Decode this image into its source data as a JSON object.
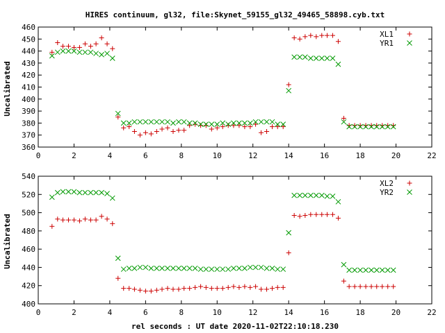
{
  "title": "HIRES continuum, gl32, file:Skynet_59155_gl32_49465_58898.cyb.txt",
  "xlabel": "rel seconds : UT date 2020-11-02T22:10:18.230",
  "colors": {
    "plus_series": "#cc0000",
    "x_series": "#009900"
  },
  "chart_data": [
    {
      "type": "scatter",
      "ylabel": "Uncalibrated",
      "xlim": [
        0,
        22
      ],
      "ylim": [
        360,
        460
      ],
      "xticks": [
        0,
        2,
        4,
        6,
        8,
        10,
        12,
        14,
        16,
        18,
        20,
        22
      ],
      "yticks": [
        360,
        370,
        380,
        390,
        400,
        410,
        420,
        430,
        440,
        450,
        460
      ],
      "grid": false,
      "legend": "top-right",
      "series": [
        {
          "name": "XL1",
          "marker": "plus",
          "x": [
            0.77,
            1.08,
            1.38,
            1.69,
            2.0,
            2.31,
            2.62,
            2.93,
            3.23,
            3.54,
            3.85,
            4.15,
            4.46,
            4.77,
            5.08,
            5.38,
            5.69,
            6.0,
            6.31,
            6.62,
            6.92,
            7.23,
            7.54,
            7.85,
            8.15,
            8.46,
            8.77,
            9.08,
            9.38,
            9.69,
            10.0,
            10.31,
            10.62,
            10.92,
            11.23,
            11.54,
            11.85,
            12.15,
            12.46,
            12.77,
            13.08,
            13.38,
            13.69,
            14.0,
            14.31,
            14.62,
            14.92,
            15.23,
            15.54,
            15.85,
            16.15,
            16.46,
            16.77,
            17.08,
            17.38,
            17.69,
            18.0,
            18.31,
            18.62,
            18.92,
            19.23,
            19.54,
            19.85
          ],
          "y": [
            439,
            447,
            444,
            444,
            443,
            443,
            446,
            444,
            446,
            451,
            446,
            442,
            385,
            376,
            377,
            373,
            370,
            372,
            371,
            373,
            375,
            376,
            373,
            374,
            374,
            378,
            379,
            378,
            378,
            375,
            376,
            377,
            378,
            378,
            378,
            377,
            377,
            379,
            372,
            373,
            377,
            377,
            377,
            412,
            451,
            450,
            452,
            453,
            452,
            453,
            453,
            453,
            448,
            384,
            378,
            378,
            378,
            378,
            378,
            378,
            378,
            378,
            378
          ]
        },
        {
          "name": "YR1",
          "marker": "x",
          "x": [
            0.77,
            1.08,
            1.38,
            1.69,
            2.0,
            2.31,
            2.62,
            2.93,
            3.23,
            3.54,
            3.85,
            4.15,
            4.46,
            4.77,
            5.08,
            5.38,
            5.69,
            6.0,
            6.31,
            6.62,
            6.92,
            7.23,
            7.54,
            7.85,
            8.15,
            8.46,
            8.77,
            9.08,
            9.38,
            9.69,
            10.0,
            10.31,
            10.62,
            10.92,
            11.23,
            11.54,
            11.85,
            12.15,
            12.46,
            12.77,
            13.08,
            13.38,
            13.69,
            14.0,
            14.31,
            14.62,
            14.92,
            15.23,
            15.54,
            15.85,
            16.15,
            16.46,
            16.77,
            17.08,
            17.38,
            17.69,
            18.0,
            18.31,
            18.62,
            18.92,
            19.23,
            19.54,
            19.85
          ],
          "y": [
            436,
            439,
            440,
            440,
            440,
            439,
            439,
            439,
            438,
            437,
            438,
            434,
            388,
            380,
            380,
            381,
            381,
            381,
            381,
            381,
            381,
            381,
            380,
            381,
            381,
            380,
            380,
            379,
            379,
            379,
            379,
            380,
            379,
            380,
            380,
            380,
            380,
            381,
            381,
            381,
            381,
            379,
            379,
            407,
            435,
            435,
            435,
            434,
            434,
            434,
            434,
            434,
            429,
            381,
            377,
            377,
            377,
            377,
            377,
            377,
            377,
            377,
            377
          ]
        }
      ]
    },
    {
      "type": "scatter",
      "ylabel": "Uncalibrated",
      "xlim": [
        0,
        22
      ],
      "ylim": [
        400,
        540
      ],
      "xticks": [
        0,
        2,
        4,
        6,
        8,
        10,
        12,
        14,
        16,
        18,
        20,
        22
      ],
      "yticks": [
        400,
        420,
        440,
        460,
        480,
        500,
        520,
        540
      ],
      "grid": false,
      "legend": "top-right",
      "series": [
        {
          "name": "XL2",
          "marker": "plus",
          "x": [
            0.77,
            1.08,
            1.38,
            1.69,
            2.0,
            2.31,
            2.62,
            2.93,
            3.23,
            3.54,
            3.85,
            4.15,
            4.46,
            4.77,
            5.08,
            5.38,
            5.69,
            6.0,
            6.31,
            6.62,
            6.92,
            7.23,
            7.54,
            7.85,
            8.15,
            8.46,
            8.77,
            9.08,
            9.38,
            9.69,
            10.0,
            10.31,
            10.62,
            10.92,
            11.23,
            11.54,
            11.85,
            12.15,
            12.46,
            12.77,
            13.08,
            13.38,
            13.69,
            14.0,
            14.31,
            14.62,
            14.92,
            15.23,
            15.54,
            15.85,
            16.15,
            16.46,
            16.77,
            17.08,
            17.38,
            17.69,
            18.0,
            18.31,
            18.62,
            18.92,
            19.23,
            19.54,
            19.85
          ],
          "y": [
            485,
            493,
            492,
            492,
            492,
            491,
            493,
            492,
            492,
            496,
            493,
            488,
            428,
            417,
            417,
            416,
            415,
            414,
            414,
            415,
            416,
            417,
            416,
            416,
            417,
            417,
            418,
            419,
            418,
            417,
            417,
            417,
            418,
            419,
            418,
            419,
            418,
            419,
            416,
            416,
            417,
            418,
            418,
            456,
            497,
            496,
            497,
            498,
            498,
            498,
            498,
            498,
            494,
            425,
            419,
            419,
            419,
            419,
            419,
            419,
            419,
            419,
            419
          ]
        },
        {
          "name": "YR2",
          "marker": "x",
          "x": [
            0.77,
            1.08,
            1.38,
            1.69,
            2.0,
            2.31,
            2.62,
            2.93,
            3.23,
            3.54,
            3.85,
            4.15,
            4.46,
            4.77,
            5.08,
            5.38,
            5.69,
            6.0,
            6.31,
            6.62,
            6.92,
            7.23,
            7.54,
            7.85,
            8.15,
            8.46,
            8.77,
            9.08,
            9.38,
            9.69,
            10.0,
            10.31,
            10.62,
            10.92,
            11.23,
            11.54,
            11.85,
            12.15,
            12.46,
            12.77,
            13.08,
            13.38,
            13.69,
            14.0,
            14.31,
            14.62,
            14.92,
            15.23,
            15.54,
            15.85,
            16.15,
            16.46,
            16.77,
            17.08,
            17.38,
            17.69,
            18.0,
            18.31,
            18.62,
            18.92,
            19.23,
            19.54,
            19.85
          ],
          "y": [
            517,
            522,
            523,
            523,
            523,
            522,
            522,
            522,
            522,
            522,
            521,
            516,
            450,
            438,
            439,
            439,
            440,
            440,
            439,
            439,
            439,
            439,
            439,
            439,
            439,
            439,
            439,
            438,
            438,
            438,
            438,
            438,
            438,
            439,
            439,
            439,
            440,
            440,
            440,
            439,
            439,
            438,
            438,
            478,
            519,
            519,
            519,
            519,
            519,
            519,
            518,
            518,
            512,
            443,
            437,
            437,
            437,
            437,
            437,
            437,
            437,
            437,
            437
          ]
        }
      ]
    }
  ]
}
